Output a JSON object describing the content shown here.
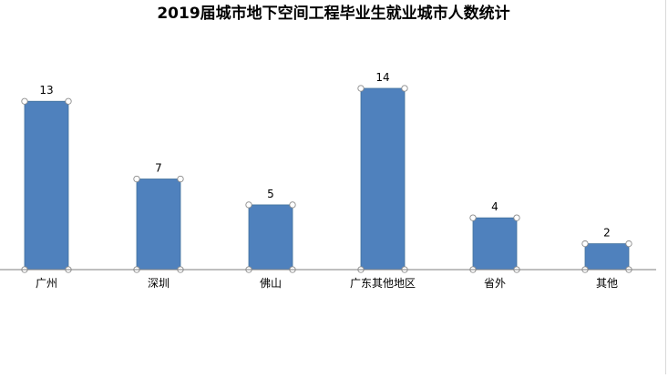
{
  "chart_data": {
    "type": "bar",
    "title": "2019届城市地下空间工程毕业生就业城市人数统计",
    "categories": [
      "广州",
      "深圳",
      "佛山",
      "广东其他地区",
      "省外",
      "其他"
    ],
    "values": [
      13,
      7,
      5,
      14,
      4,
      2
    ],
    "xlabel": "",
    "ylabel": "",
    "ylim": [
      0,
      14
    ],
    "grid": false,
    "legend": "none",
    "bar_color": "#4f81bd",
    "bar_border_color": "#41719c",
    "handle_color": "#ffffff",
    "axis_color": "#7f7f7f"
  }
}
